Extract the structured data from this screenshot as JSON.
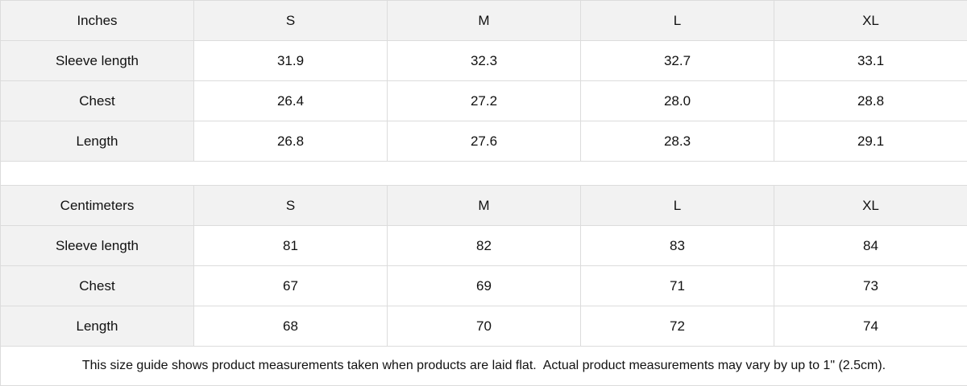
{
  "tables": [
    {
      "unit": "Inches",
      "sizes": [
        "S",
        "M",
        "L",
        "XL"
      ],
      "rows": [
        {
          "label": "Sleeve length",
          "values": [
            "31.9",
            "32.3",
            "32.7",
            "33.1"
          ]
        },
        {
          "label": "Chest",
          "values": [
            "26.4",
            "27.2",
            "28.0",
            "28.8"
          ]
        },
        {
          "label": "Length",
          "values": [
            "26.8",
            "27.6",
            "28.3",
            "29.1"
          ]
        }
      ]
    },
    {
      "unit": "Centimeters",
      "sizes": [
        "S",
        "M",
        "L",
        "XL"
      ],
      "rows": [
        {
          "label": "Sleeve length",
          "values": [
            "81",
            "82",
            "83",
            "84"
          ]
        },
        {
          "label": "Chest",
          "values": [
            "67",
            "69",
            "71",
            "73"
          ]
        },
        {
          "label": "Length",
          "values": [
            "68",
            "70",
            "72",
            "74"
          ]
        }
      ]
    }
  ],
  "footnote": "This size guide shows product measurements taken when products are laid flat.  Actual product measurements may vary by up to 1\" (2.5cm)."
}
